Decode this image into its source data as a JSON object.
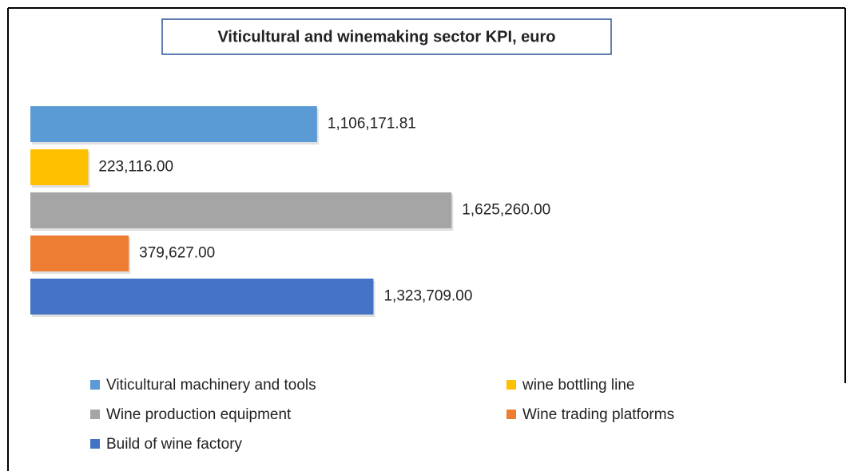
{
  "chart_data": {
    "type": "bar",
    "orientation": "horizontal",
    "title": "Viticultural and winemaking sector KPI, euro",
    "xlim": [
      0,
      1800000
    ],
    "series": [
      {
        "name": "Viticultural machinery and tools",
        "color": "#5b9bd5",
        "values": [
          1106171.81
        ],
        "value_labels": [
          "1,106,171.81"
        ]
      },
      {
        "name": "wine bottling line",
        "color": "#ffc000",
        "values": [
          223116
        ],
        "value_labels": [
          "223,116.00"
        ]
      },
      {
        "name": "Wine production equipment",
        "color": "#a5a5a5",
        "values": [
          1625260
        ],
        "value_labels": [
          "1,625,260.00"
        ]
      },
      {
        "name": "Wine trading platforms",
        "color": "#ed7d31",
        "values": [
          379627
        ],
        "value_labels": [
          "379,627.00"
        ]
      },
      {
        "name": "Build of wine factory",
        "color": "#4472c4",
        "values": [
          1323709
        ],
        "value_labels": [
          "1,323,709.00"
        ]
      }
    ],
    "legend": "bottom"
  }
}
